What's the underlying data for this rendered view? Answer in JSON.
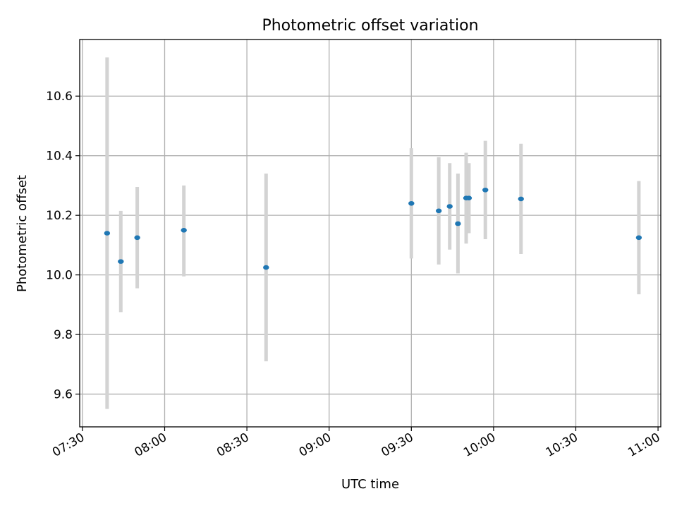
{
  "chart_data": {
    "type": "scatter",
    "title": "Photometric offset variation",
    "xlabel": "UTC time",
    "ylabel": "Photometric offset",
    "x_unit": "HH:MM",
    "xlim": [
      "07:29",
      "11:01"
    ],
    "ylim": [
      9.49,
      10.79
    ],
    "x_ticks": [
      "07:30",
      "08:00",
      "08:30",
      "09:00",
      "09:30",
      "10:00",
      "10:30",
      "11:00"
    ],
    "y_ticks": [
      9.6,
      9.8,
      10.0,
      10.2,
      10.4,
      10.6
    ],
    "y_tick_labels": [
      "9.6",
      "9.8",
      "10.0",
      "10.2",
      "10.4",
      "10.6"
    ],
    "grid": true,
    "colors": {
      "point": "#1f77b4",
      "errorbar": "#d3d3d3",
      "grid": "#b0b0b0"
    },
    "series": [
      {
        "points": [
          {
            "x": "07:39",
            "y": 10.14,
            "ymin": 9.55,
            "ymax": 10.73
          },
          {
            "x": "07:44",
            "y": 10.045,
            "ymin": 9.875,
            "ymax": 10.215
          },
          {
            "x": "07:50",
            "y": 10.125,
            "ymin": 9.955,
            "ymax": 10.295
          },
          {
            "x": "08:07",
            "y": 10.15,
            "ymin": 9.995,
            "ymax": 10.3
          },
          {
            "x": "08:37",
            "y": 10.025,
            "ymin": 9.71,
            "ymax": 10.34
          },
          {
            "x": "09:30",
            "y": 10.24,
            "ymin": 10.055,
            "ymax": 10.425
          },
          {
            "x": "09:40",
            "y": 10.215,
            "ymin": 10.035,
            "ymax": 10.395
          },
          {
            "x": "09:44",
            "y": 10.23,
            "ymin": 10.085,
            "ymax": 10.375
          },
          {
            "x": "09:47",
            "y": 10.172,
            "ymin": 10.005,
            "ymax": 10.34
          },
          {
            "x": "09:50",
            "y": 10.258,
            "ymin": 10.105,
            "ymax": 10.41
          },
          {
            "x": "09:51",
            "y": 10.258,
            "ymin": 10.14,
            "ymax": 10.375
          },
          {
            "x": "09:57",
            "y": 10.285,
            "ymin": 10.12,
            "ymax": 10.45
          },
          {
            "x": "10:10",
            "y": 10.255,
            "ymin": 10.07,
            "ymax": 10.44
          },
          {
            "x": "10:53",
            "y": 10.125,
            "ymin": 9.935,
            "ymax": 10.315
          }
        ]
      }
    ]
  }
}
